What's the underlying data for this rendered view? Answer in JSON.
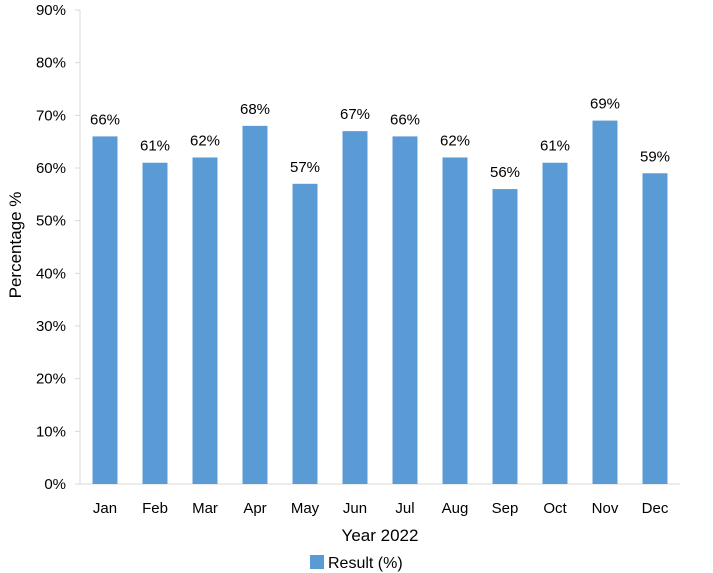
{
  "chart_data": {
    "type": "bar",
    "title": "",
    "xlabel": "Year 2022",
    "ylabel": "Percentage %",
    "categories": [
      "Jan",
      "Feb",
      "Mar",
      "Apr",
      "May",
      "Jun",
      "Jul",
      "Aug",
      "Sep",
      "Oct",
      "Nov",
      "Dec"
    ],
    "series": [
      {
        "name": "Result (%)",
        "values": [
          66,
          61,
          62,
          68,
          57,
          67,
          66,
          62,
          56,
          61,
          69,
          59
        ],
        "color": "#5b9bd5"
      }
    ],
    "data_labels": [
      "66%",
      "61%",
      "62%",
      "68%",
      "57%",
      "67%",
      "66%",
      "62%",
      "56%",
      "61%",
      "69%",
      "59%"
    ],
    "ylim": [
      0,
      90
    ],
    "yticks": [
      0,
      10,
      20,
      30,
      40,
      50,
      60,
      70,
      80,
      90
    ],
    "ytick_labels": [
      "0%",
      "10%",
      "20%",
      "30%",
      "40%",
      "50%",
      "60%",
      "70%",
      "80%",
      "90%"
    ],
    "grid": false,
    "legend": "bottom-center"
  }
}
